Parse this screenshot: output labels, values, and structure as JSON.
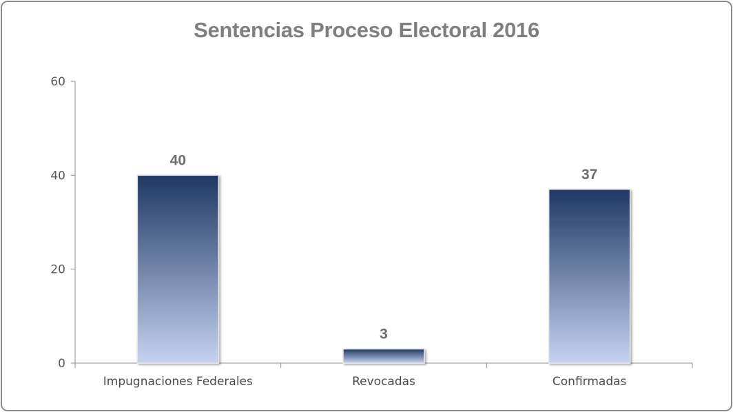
{
  "chart_data": {
    "type": "bar",
    "title": "Sentencias Proceso Electoral 2016",
    "categories": [
      "Impugnaciones Federales",
      "Revocadas",
      "Confirmadas"
    ],
    "values": [
      40,
      3,
      37
    ],
    "data_labels": [
      "40",
      "3",
      "37"
    ],
    "ylim": [
      0,
      60
    ],
    "yticks": [
      0,
      20,
      40,
      60
    ],
    "xlabel": "",
    "ylabel": "",
    "grid": false,
    "legend": "none",
    "bar_color_top": "#1f3864",
    "bar_color_bottom": "#c5d3ef"
  }
}
